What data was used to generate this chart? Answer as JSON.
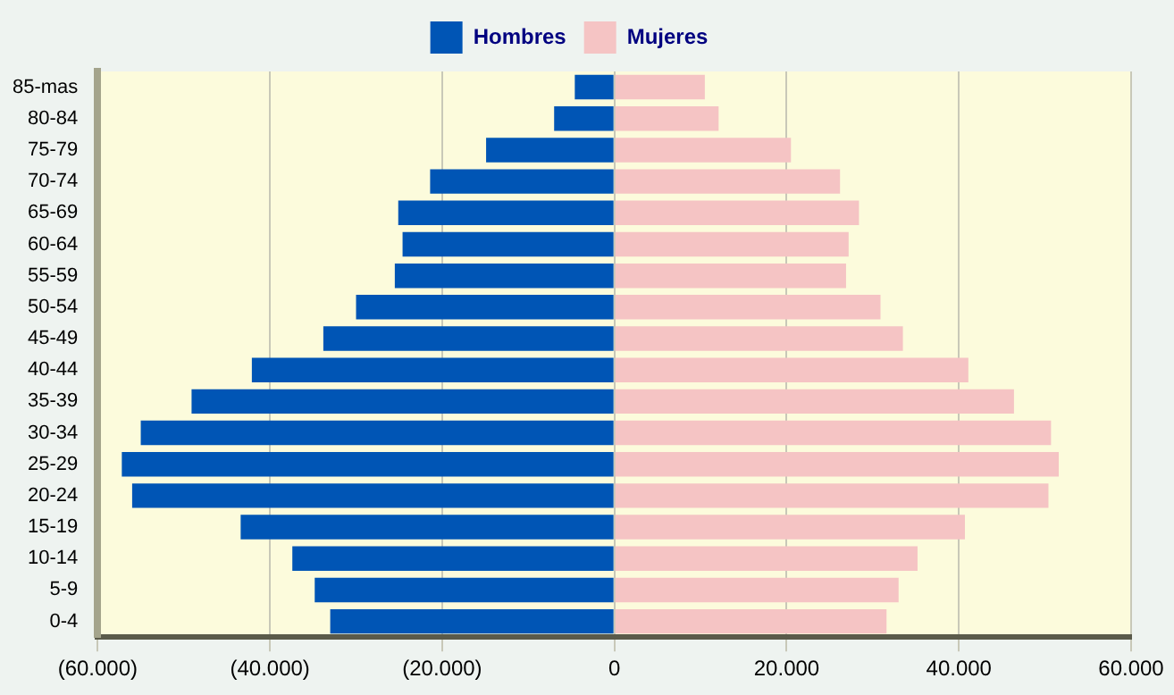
{
  "chart_data": {
    "type": "bar",
    "orientation": "horizontal",
    "stacked": true,
    "categories": [
      "85-mas",
      "80-84",
      "75-79",
      "70-74",
      "65-69",
      "60-64",
      "55-59",
      "50-54",
      "45-49",
      "40-44",
      "35-39",
      "30-34",
      "25-29",
      "20-24",
      "15-19",
      "10-14",
      "5-9",
      "0-4"
    ],
    "series": [
      {
        "name": "Hombres",
        "color": "#0055b5",
        "values": [
          -4600,
          -7000,
          -14900,
          -21400,
          -25100,
          -24600,
          -25500,
          -30000,
          -33800,
          -42100,
          -49100,
          -55000,
          -57200,
          -56000,
          -43400,
          -37400,
          -34800,
          -33000
        ]
      },
      {
        "name": "Mujeres",
        "color": "#f5c4c4",
        "values": [
          10500,
          12100,
          20500,
          26200,
          28400,
          27200,
          26900,
          30900,
          33500,
          41100,
          46400,
          50700,
          51600,
          50400,
          40700,
          35200,
          33000,
          31600
        ]
      }
    ],
    "xlim": [
      -60000,
      60000
    ],
    "xticks": [
      {
        "value": -60000,
        "label": "(60.000)"
      },
      {
        "value": -40000,
        "label": "(40.000)"
      },
      {
        "value": -20000,
        "label": "(20.000)"
      },
      0,
      {
        "value": 20000,
        "label": "20.000"
      },
      {
        "value": 40000,
        "label": "40.000"
      },
      {
        "value": 60000,
        "label": "60.000"
      }
    ],
    "grid": "x",
    "legend": "top"
  }
}
